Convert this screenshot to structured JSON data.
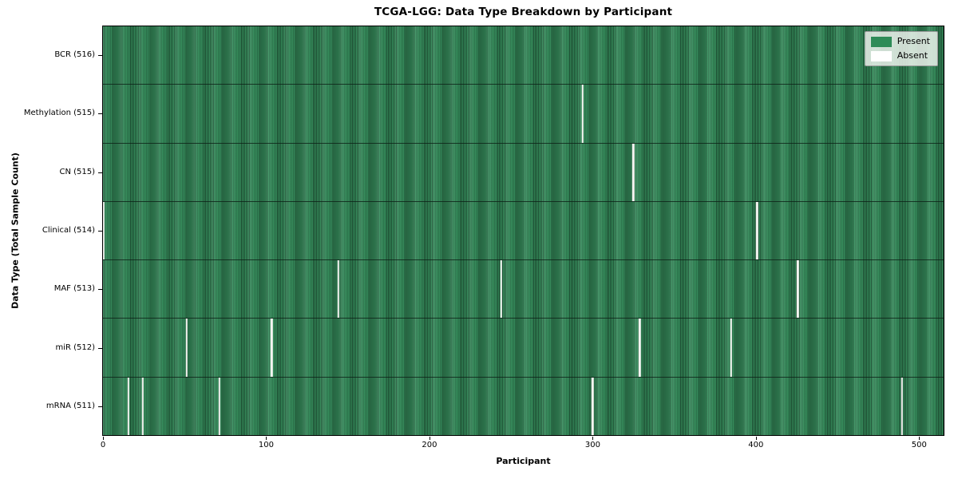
{
  "chart_data": {
    "type": "heatmap",
    "title": "TCGA-LGG: Data Type Breakdown by Participant",
    "xlabel": "Participant",
    "ylabel": "Data Type (Total Sample Count)",
    "n_participants": 516,
    "x_ticks": [
      0,
      100,
      200,
      300,
      400,
      500
    ],
    "grid": false,
    "legend_position": "upper right",
    "legend": [
      {
        "label": "Present",
        "color": "#2e8b57"
      },
      {
        "label": "Absent",
        "color": "#ffffff"
      }
    ],
    "colors": {
      "present_fill": "#2e8b57",
      "present_edge": "#1e5134",
      "absent_mark": "#f4f4f1",
      "row_divider": "#0c2116",
      "legend_background": "#ebf1eb"
    },
    "rows": [
      {
        "data_type": "BCR",
        "label": "BCR (516)",
        "present_count": 516,
        "absent_participants": []
      },
      {
        "data_type": "Methylation",
        "label": "Methylation (515)",
        "present_count": 515,
        "absent_participants": [
          294
        ]
      },
      {
        "data_type": "CN",
        "label": "CN (515)",
        "present_count": 515,
        "absent_participants": [
          325
        ]
      },
      {
        "data_type": "Clinical",
        "label": "Clinical (514)",
        "present_count": 514,
        "absent_participants": [
          0,
          401
        ]
      },
      {
        "data_type": "MAF",
        "label": "MAF (513)",
        "present_count": 513,
        "absent_participants": [
          144,
          244,
          426
        ]
      },
      {
        "data_type": "miR",
        "label": "miR (512)",
        "present_count": 512,
        "absent_participants": [
          51,
          103,
          329,
          385
        ]
      },
      {
        "data_type": "mRNA",
        "label": "mRNA (511)",
        "present_count": 511,
        "absent_participants": [
          15,
          24,
          71,
          300,
          490
        ]
      }
    ]
  }
}
